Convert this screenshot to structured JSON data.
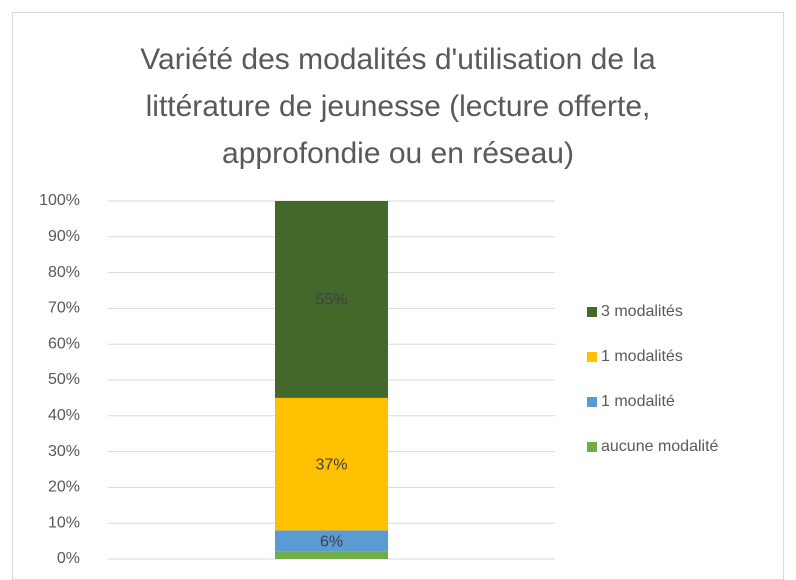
{
  "chart_data": {
    "type": "bar",
    "stacked": true,
    "title": "Variété des modalités d'utilisation de la littérature de jeunesse (lecture offerte, approfondie ou en réseau)",
    "categories": [
      null
    ],
    "series": [
      {
        "name": "aucune modalité",
        "color": "#70ad47",
        "values": [
          2
        ]
      },
      {
        "name": "1 modalité",
        "color": "#5b9bd5",
        "values": [
          6
        ],
        "value_labels": [
          "6%"
        ]
      },
      {
        "name": "1 modalités",
        "color": "#ffc000",
        "values": [
          37
        ],
        "value_labels": [
          "37%"
        ]
      },
      {
        "name": "3 modalités",
        "color": "#43682b",
        "values": [
          55
        ],
        "value_labels": [
          "55%"
        ]
      }
    ],
    "ylim": [
      0,
      100
    ],
    "yticks": [
      {
        "value": 0,
        "label": "0%"
      },
      {
        "value": 10,
        "label": "10%"
      },
      {
        "value": 20,
        "label": "20%"
      },
      {
        "value": 30,
        "label": "30%"
      },
      {
        "value": 40,
        "label": "40%"
      },
      {
        "value": 50,
        "label": "50%"
      },
      {
        "value": 60,
        "label": "60%"
      },
      {
        "value": 70,
        "label": "70%"
      },
      {
        "value": 80,
        "label": "80%"
      },
      {
        "value": 90,
        "label": "90%"
      },
      {
        "value": 100,
        "label": "100%"
      }
    ],
    "grid": true,
    "legend": "right"
  }
}
